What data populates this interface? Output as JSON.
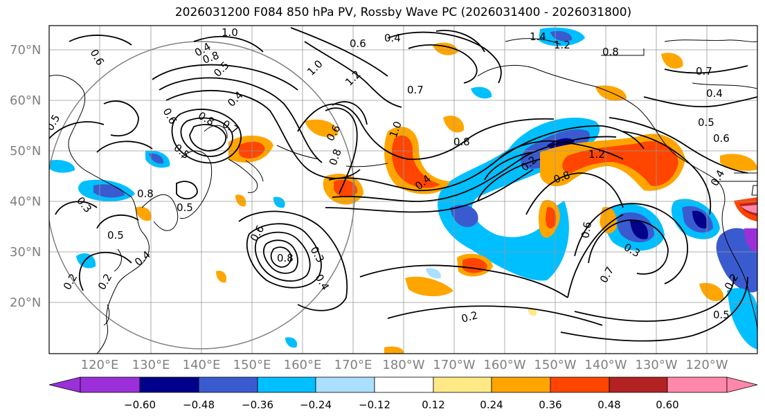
{
  "title": "2026031200 F084 850 hPa PV, Rossby Wave PC (2026031400 - 2026031800)",
  "lat_labels": [
    "70°N",
    "60°N",
    "50°N",
    "40°N",
    "30°N",
    "20°N"
  ],
  "lon_labels": [
    "120°E",
    "130°E",
    "140°E",
    "150°E",
    "160°E",
    "170°E",
    "180°W",
    "170°W",
    "160°W",
    "150°W",
    "140°W",
    "130°W",
    "120°W"
  ],
  "colorbar": {
    "ticks": [
      "−0.60",
      "−0.48",
      "−0.36",
      "−0.24",
      "−0.12",
      "0.12",
      "0.24",
      "0.36",
      "0.48",
      "0.60"
    ],
    "colors": [
      "#9b30d9",
      "#00008b",
      "#3a5bd0",
      "#00bfff",
      "#aadfff",
      "#ffffff",
      "#ffe987",
      "#ffa500",
      "#ff4500",
      "#b22222",
      "#ff88aa"
    ]
  },
  "contour_labels": [
    "0.6",
    "1.0",
    "0.8",
    "0.4",
    "0.6",
    "0.4",
    "1.4",
    "1.2",
    "0.8",
    "0.7",
    "0.4",
    "0.5",
    "0.5",
    "1.0",
    "1.2",
    "0.7",
    "0.4",
    "0.7",
    "0.6",
    "0.8",
    "0.5",
    "0.6",
    "0.8",
    "1.0",
    "0.8",
    "0.4",
    "1.2",
    "0.2",
    "0.8",
    "0.6",
    "0.3",
    "0.7",
    "0.5",
    "0.6",
    "0.8",
    "0.5",
    "0.4",
    "0.3",
    "0.2",
    "0.2",
    "0.6",
    "0.3",
    "0.8",
    "0.4",
    "0.5",
    "0.5",
    "0.2",
    "0.4",
    "0.2"
  ]
}
